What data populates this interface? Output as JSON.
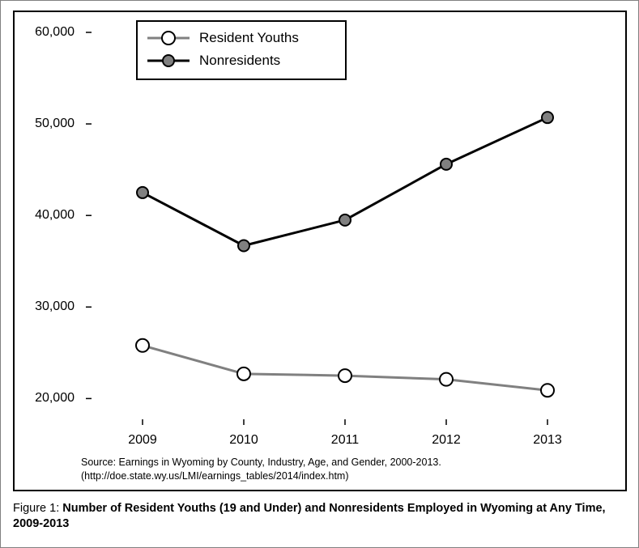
{
  "chart": {
    "type": "line",
    "background_color": "#ffffff",
    "frame_border_color": "#000000",
    "frame_border_width": 2,
    "outer_border_color": "#808080",
    "plot": {
      "x_categories": [
        "2009",
        "2010",
        "2011",
        "2012",
        "2013"
      ],
      "y_ticks": [
        20000,
        30000,
        40000,
        50000,
        60000
      ],
      "y_tick_labels": [
        "20,000",
        "30,000",
        "40,000",
        "50,000",
        "60,000"
      ],
      "ylim": [
        18000,
        60000
      ],
      "x_tick_fontsize": 16,
      "y_tick_fontsize": 16,
      "tick_color": "#000000",
      "tick_length": 7
    },
    "series": [
      {
        "name": "Resident Youths",
        "values": [
          25800,
          22700,
          22500,
          22100,
          20900
        ],
        "line_color": "#808080",
        "line_width": 3,
        "marker_shape": "circle",
        "marker_size": 8,
        "marker_fill": "#ffffff",
        "marker_stroke": "#000000",
        "marker_stroke_width": 2
      },
      {
        "name": "Nonresidents",
        "values": [
          42500,
          36700,
          39500,
          45600,
          50700
        ],
        "line_color": "#000000",
        "line_width": 3,
        "marker_shape": "circle",
        "marker_size": 7,
        "marker_fill": "#808080",
        "marker_stroke": "#000000",
        "marker_stroke_width": 2
      }
    ],
    "legend": {
      "position": "top-left-inset",
      "border_color": "#000000",
      "border_width": 2,
      "background": "#ffffff",
      "label_fontsize": 17
    },
    "source": {
      "line1": "Source: Earnings in Wyoming by County, Industry, Age, and Gender, 2000-2013.",
      "line2": "(http://doe.state.wy.us/LMI/earnings_tables/2014/index.htm)",
      "fontsize": 12.5
    }
  },
  "caption": {
    "label": "Figure 1: ",
    "title": "Number of Resident Youths (19 and Under) and Nonresidents Employed in Wyoming at Any Time, 2009-2013",
    "fontsize": 14.5
  }
}
